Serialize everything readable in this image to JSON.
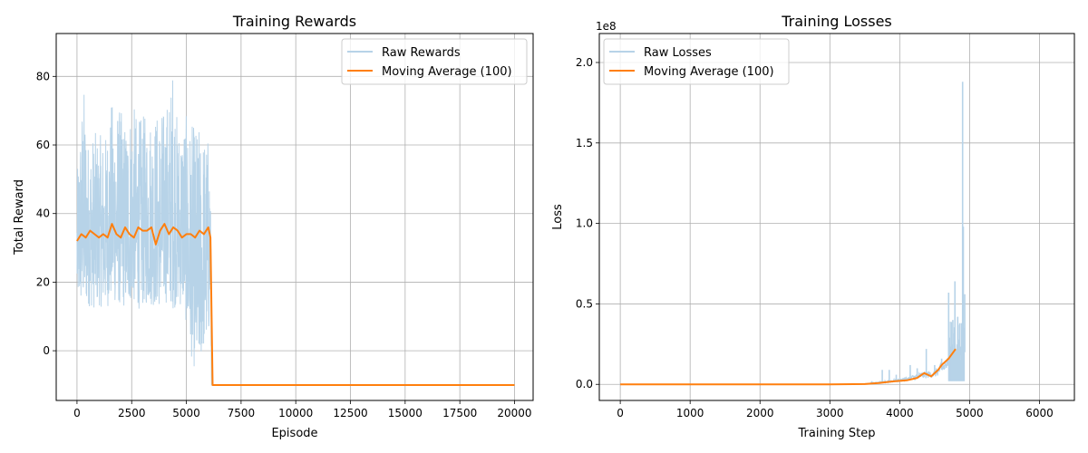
{
  "chart_data": [
    {
      "type": "line",
      "title": "Training Rewards",
      "xlabel": "Episode",
      "ylabel": "Total Reward",
      "xlim": [
        -950,
        20850
      ],
      "ylim": [
        -14.5,
        92.5
      ],
      "xticks": [
        0,
        2500,
        5000,
        7500,
        10000,
        12500,
        15000,
        17500,
        20000
      ],
      "xtick_labels": [
        "0",
        "2500",
        "5000",
        "7500",
        "10000",
        "12500",
        "15000",
        "17500",
        "20000"
      ],
      "yticks": [
        0,
        20,
        40,
        60,
        80
      ],
      "ytick_labels": [
        "0",
        "20",
        "40",
        "60",
        "80"
      ],
      "grid": true,
      "legend_position": "top-right",
      "series": [
        {
          "name": "Raw Rewards",
          "color": "#b7d3e8",
          "style": "raw-noise",
          "x": [
            0,
            100,
            300,
            500,
            800,
            1000,
            1300,
            1600,
            1900,
            2200,
            2500,
            2800,
            3100,
            3400,
            3700,
            4000,
            4300,
            4400,
            4600,
            4900,
            5100,
            5300,
            5500,
            5800,
            6000,
            6100,
            6150,
            6200,
            20000
          ],
          "low": [
            15,
            12,
            11,
            13,
            12,
            13,
            12,
            14,
            13,
            12,
            14,
            12,
            13,
            13,
            12,
            14,
            13,
            12,
            13,
            12,
            2,
            -4,
            -8,
            0,
            2,
            10,
            -10,
            -10,
            -10
          ],
          "high": [
            50,
            62,
            79,
            62,
            64,
            63,
            63,
            73,
            72,
            67,
            73,
            68,
            69,
            70,
            70,
            71,
            77,
            87,
            66,
            70,
            67,
            66,
            66,
            64,
            63,
            60,
            -10,
            -10,
            -10
          ]
        },
        {
          "name": "Moving Average (100)",
          "color": "#ff7f0e",
          "style": "line",
          "x": [
            0,
            200,
            400,
            600,
            800,
            1000,
            1200,
            1400,
            1600,
            1800,
            2000,
            2200,
            2400,
            2600,
            2800,
            3000,
            3200,
            3400,
            3600,
            3800,
            4000,
            4200,
            4400,
            4600,
            4800,
            5000,
            5200,
            5400,
            5600,
            5800,
            6000,
            6100,
            6200,
            20000
          ],
          "y": [
            32,
            34,
            33,
            35,
            34,
            33,
            34,
            33,
            37,
            34,
            33,
            36,
            34,
            33,
            36,
            35,
            35,
            36,
            31,
            35,
            37,
            34,
            36,
            35,
            33,
            34,
            34,
            33,
            35,
            34,
            36,
            33,
            -10,
            -10
          ]
        }
      ]
    },
    {
      "type": "line",
      "title": "Training Losses",
      "xlabel": "Training Step",
      "ylabel": "Loss",
      "scale_label": "1e8",
      "xlim": [
        -300,
        6500
      ],
      "ylim": [
        -0.1,
        2.18
      ],
      "xticks": [
        0,
        1000,
        2000,
        3000,
        4000,
        5000,
        6000
      ],
      "xtick_labels": [
        "0",
        "1000",
        "2000",
        "3000",
        "4000",
        "5000",
        "6000"
      ],
      "yticks": [
        0,
        0.5,
        1.0,
        1.5,
        2.0
      ],
      "ytick_labels": [
        "0.0",
        "0.5",
        "1.0",
        "1.5",
        "2.0"
      ],
      "grid": true,
      "legend_position": "top-left",
      "series": [
        {
          "name": "Raw Losses",
          "color": "#b7d3e8",
          "style": "spikes",
          "baseline": [
            [
              0,
              0
            ],
            [
              3400,
              0
            ],
            [
              3700,
              0.01
            ],
            [
              3900,
              0.02
            ],
            [
              4100,
              0.03
            ],
            [
              4300,
              0.05
            ],
            [
              4500,
              0.06
            ],
            [
              4700,
              0.12
            ],
            [
              4800,
              0.18
            ],
            [
              4900,
              0.2
            ]
          ],
          "spikes": [
            [
              3600,
              0.02
            ],
            [
              3750,
              0.09
            ],
            [
              3850,
              0.09
            ],
            [
              3950,
              0.06
            ],
            [
              4050,
              0.04
            ],
            [
              4150,
              0.12
            ],
            [
              4250,
              0.1
            ],
            [
              4380,
              0.22
            ],
            [
              4500,
              0.12
            ],
            [
              4600,
              0.16
            ],
            [
              4650,
              0.1
            ],
            [
              4700,
              0.57
            ],
            [
              4760,
              0.4
            ],
            [
              4790,
              0.64
            ],
            [
              4830,
              0.42
            ],
            [
              4860,
              0.38
            ],
            [
              4890,
              0.33
            ],
            [
              4900,
              1.88
            ],
            [
              4910,
              0.98
            ],
            [
              4930,
              0.56
            ]
          ]
        },
        {
          "name": "Moving Average (100)",
          "color": "#ff7f0e",
          "style": "line",
          "x": [
            0,
            1000,
            2000,
            3000,
            3500,
            3700,
            3900,
            4100,
            4250,
            4350,
            4450,
            4550,
            4600,
            4700,
            4800
          ],
          "y": [
            0,
            0,
            0,
            0,
            0.002,
            0.008,
            0.018,
            0.025,
            0.04,
            0.07,
            0.05,
            0.09,
            0.12,
            0.16,
            0.22
          ]
        }
      ]
    }
  ]
}
